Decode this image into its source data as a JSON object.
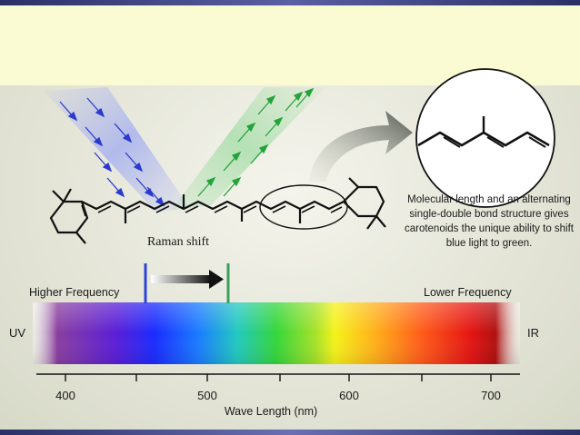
{
  "diagram": {
    "caption": "Molecular length and an alternating single-double bond structure gives carotenoids the unique ability to shift blue light to green.",
    "raman_label": "Raman shift",
    "higher_frequency": "Higher Frequency",
    "lower_frequency": "Lower Frequency",
    "uv_label": "UV",
    "ir_label": "IR",
    "axis_title": "Wave Length (nm)",
    "ticks": [
      "400",
      "500",
      "600",
      "700"
    ],
    "colors": {
      "blue_line": "#2d43d8",
      "green_line": "#3aa05a",
      "incoming_arrows": "#2a3ad0",
      "scattered_arrows": "#23a33a"
    }
  }
}
